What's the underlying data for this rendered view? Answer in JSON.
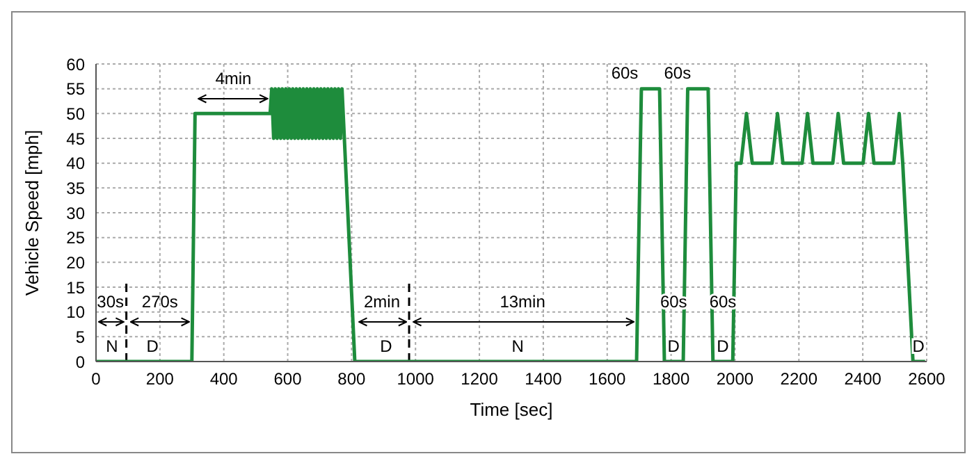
{
  "chart_data": {
    "type": "line",
    "xlabel": "Time [sec]",
    "ylabel": "Vehicle Speed [mph]",
    "xlim": [
      0,
      2600
    ],
    "xticks": [
      0,
      200,
      400,
      600,
      800,
      1000,
      1200,
      1400,
      1600,
      1800,
      2000,
      2200,
      2400,
      2600
    ],
    "ylim": [
      0,
      60
    ],
    "yticks": [
      0,
      5,
      10,
      15,
      20,
      25,
      30,
      35,
      40,
      45,
      50,
      55,
      60
    ],
    "grid": true,
    "legend": false,
    "marker": "none",
    "line_style": "solid",
    "series": [
      {
        "color": "#1e8c3c",
        "x": [
          0,
          300,
          310,
          545,
          550,
          556,
          561,
          567,
          572,
          578,
          583,
          589,
          594,
          600,
          605,
          611,
          616,
          622,
          627,
          633,
          638,
          644,
          649,
          655,
          660,
          666,
          671,
          677,
          682,
          688,
          693,
          699,
          704,
          710,
          715,
          721,
          726,
          732,
          737,
          743,
          748,
          754,
          759,
          765,
          770,
          810,
          1692,
          1707,
          1764,
          1779,
          1838,
          1852,
          1916,
          1931,
          1993,
          2004,
          2019,
          2036,
          2054,
          2116,
          2133,
          2150,
          2210,
          2227,
          2244,
          2306,
          2323,
          2340,
          2401,
          2418,
          2435,
          2497,
          2514,
          2525,
          2557,
          2595
        ],
        "values": [
          0,
          0,
          50,
          50,
          55,
          45,
          55,
          45,
          55,
          45,
          55,
          45,
          55,
          45,
          55,
          45,
          55,
          45,
          55,
          45,
          55,
          45,
          55,
          45,
          55,
          45,
          55,
          45,
          55,
          45,
          55,
          45,
          55,
          45,
          55,
          45,
          55,
          45,
          55,
          45,
          55,
          45,
          55,
          45,
          55,
          0,
          0,
          55,
          55,
          0,
          0,
          55,
          55,
          0,
          0,
          40,
          40,
          50,
          40,
          40,
          50,
          40,
          40,
          50,
          40,
          40,
          50,
          40,
          40,
          50,
          40,
          40,
          50,
          40,
          0,
          0
        ]
      }
    ],
    "ref_lines": [
      {
        "axis": "x",
        "value": 95,
        "line_style": "dashed",
        "color": "#000000"
      },
      {
        "axis": "x",
        "value": 980,
        "line_style": "dashed",
        "color": "#000000"
      }
    ],
    "annotations": [
      {
        "text": "30s",
        "x": 95,
        "y": 8
      },
      {
        "text": "270s",
        "x": 300,
        "y": 8
      },
      {
        "text": "4min",
        "x": 545,
        "y": 53
      },
      {
        "text": "2min",
        "x": 980,
        "y": 8
      },
      "13min",
      "60s",
      "60s",
      "60s",
      "60s",
      "N",
      "D",
      "D",
      "N",
      "D",
      "D",
      "D"
    ]
  }
}
